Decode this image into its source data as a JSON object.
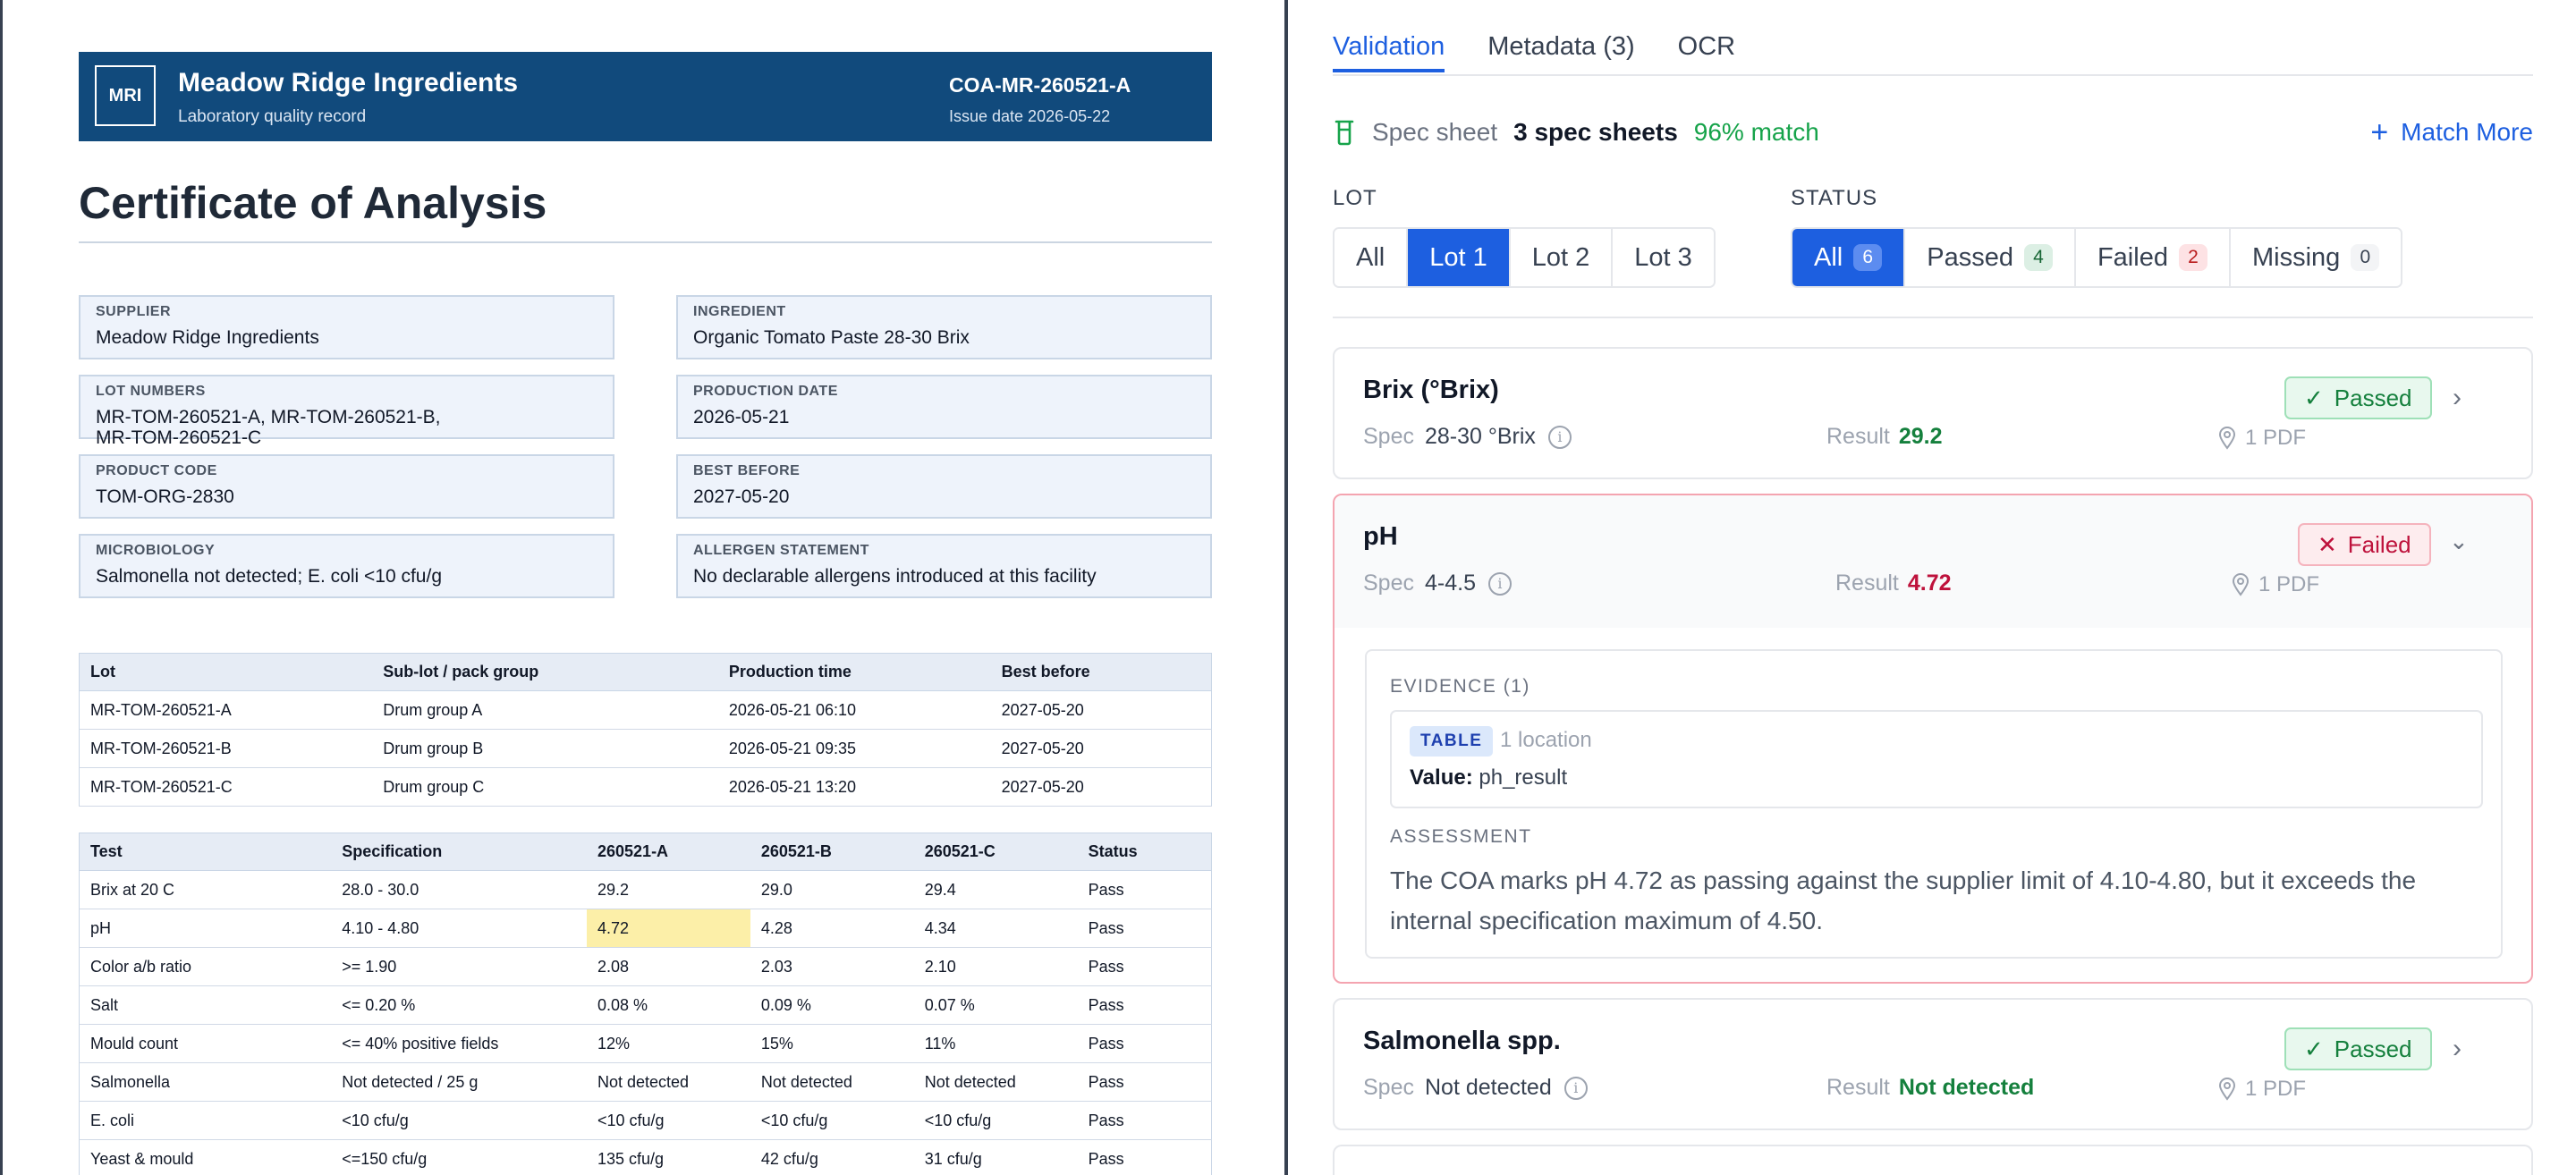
{
  "document": {
    "logo": "MRI",
    "company": "Meadow Ridge Ingredients",
    "subtitle": "Laboratory quality record",
    "coa_id": "COA-MR-260521-A",
    "issue_date": "Issue date 2026-05-22",
    "title": "Certificate of Analysis",
    "fields": [
      {
        "label": "SUPPLIER",
        "value": "Meadow Ridge Ingredients"
      },
      {
        "label": "INGREDIENT",
        "value": "Organic Tomato Paste 28-30 Brix"
      },
      {
        "label": "LOT NUMBERS",
        "value": "MR-TOM-260521-A, MR-TOM-260521-B, MR-TOM-260521-C"
      },
      {
        "label": "PRODUCTION DATE",
        "value": "2026-05-21"
      },
      {
        "label": "PRODUCT CODE",
        "value": "TOM-ORG-2830"
      },
      {
        "label": "BEST BEFORE",
        "value": "2027-05-20"
      },
      {
        "label": "MICROBIOLOGY",
        "value": "Salmonella not detected; E. coli <10 cfu/g"
      },
      {
        "label": "ALLERGEN STATEMENT",
        "value": "No declarable allergens introduced at this facility"
      }
    ],
    "lot_table": {
      "headers": [
        "Lot",
        "Sub-lot / pack group",
        "Production time",
        "Best before"
      ],
      "rows": [
        [
          "MR-TOM-260521-A",
          "Drum group A",
          "2026-05-21 06:10",
          "2027-05-20"
        ],
        [
          "MR-TOM-260521-B",
          "Drum group B",
          "2026-05-21 09:35",
          "2027-05-20"
        ],
        [
          "MR-TOM-260521-C",
          "Drum group C",
          "2026-05-21 13:20",
          "2027-05-20"
        ]
      ]
    },
    "test_table": {
      "headers": [
        "Test",
        "Specification",
        "260521-A",
        "260521-B",
        "260521-C",
        "Status"
      ],
      "rows": [
        [
          "Brix at 20 C",
          "28.0 - 30.0",
          "29.2",
          "29.0",
          "29.4",
          "Pass"
        ],
        [
          "pH",
          "4.10 - 4.80",
          "4.72",
          "4.28",
          "4.34",
          "Pass"
        ],
        [
          "Color a/b ratio",
          ">= 1.90",
          "2.08",
          "2.03",
          "2.10",
          "Pass"
        ],
        [
          "Salt",
          "<= 0.20 %",
          "0.08 %",
          "0.09 %",
          "0.07 %",
          "Pass"
        ],
        [
          "Mould count",
          "<= 40% positive fields",
          "12%",
          "15%",
          "11%",
          "Pass"
        ],
        [
          "Salmonella",
          "Not detected / 25 g",
          "Not detected",
          "Not detected",
          "Not detected",
          "Pass"
        ],
        [
          "E. coli",
          "<10 cfu/g",
          "<10 cfu/g",
          "<10 cfu/g",
          "<10 cfu/g",
          "Pass"
        ],
        [
          "Yeast & mould",
          "<=150 cfu/g",
          "135 cfu/g",
          "42 cfu/g",
          "31 cfu/g",
          "Pass"
        ]
      ]
    }
  },
  "panel": {
    "tabs": [
      "Validation",
      "Metadata (3)",
      "OCR"
    ],
    "active_tab": "Validation",
    "spec": {
      "label": "Spec sheet",
      "count": "3 spec sheets",
      "match": "96% match",
      "action": "Match More"
    },
    "lot_filter": {
      "label": "LOT",
      "options": [
        "All",
        "Lot 1",
        "Lot 2",
        "Lot 3"
      ],
      "selected": "Lot 1"
    },
    "status_filter": {
      "label": "STATUS",
      "options": [
        {
          "label": "All",
          "count": "6"
        },
        {
          "label": "Passed",
          "count": "4"
        },
        {
          "label": "Failed",
          "count": "2"
        },
        {
          "label": "Missing",
          "count": "0"
        }
      ],
      "selected": "All"
    },
    "cards": [
      {
        "title": "Brix (°Brix)",
        "spec_label": "Spec",
        "spec": "28-30 °Brix",
        "result_label": "Result",
        "result": "29.2",
        "pdf": "1 PDF",
        "status": "Passed"
      },
      {
        "title": "pH",
        "spec_label": "Spec",
        "spec": "4-4.5",
        "result_label": "Result",
        "result": "4.72",
        "pdf": "1 PDF",
        "status": "Failed",
        "evidence_label": "EVIDENCE (1)",
        "evidence_tag": "TABLE",
        "evidence_loc": "1 location",
        "evidence_value_label": "Value:",
        "evidence_value": "ph_result",
        "assessment_label": "ASSESSMENT",
        "assessment": "The COA marks pH 4.72 as passing against the supplier limit of 4.10-4.80, but it exceeds the internal specification maximum of 4.50."
      },
      {
        "title": "Salmonella spp.",
        "spec_label": "Spec",
        "spec": "Not detected",
        "result_label": "Result",
        "result": "Not detected",
        "pdf": "1 PDF",
        "status": "Passed"
      }
    ]
  },
  "colors": {
    "brand_header": "#114a7c",
    "accent": "#1d5fe0",
    "pass": "#15803d",
    "fail": "#be123c",
    "highlight": "#fcefa8"
  }
}
